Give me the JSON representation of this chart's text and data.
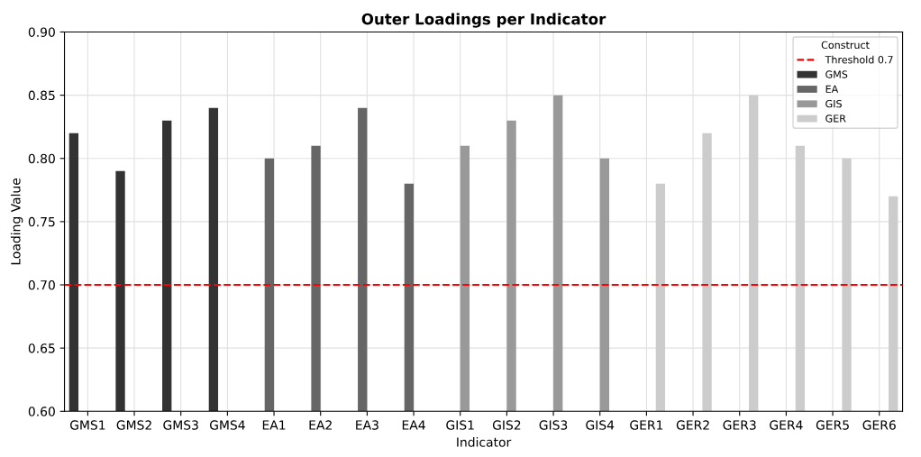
{
  "chart_data": {
    "type": "bar",
    "title": "Outer Loadings per Indicator",
    "xlabel": "Indicator",
    "ylabel": "Loading Value",
    "categories": [
      "GMS1",
      "GMS2",
      "GMS3",
      "GMS4",
      "EA1",
      "EA2",
      "EA3",
      "EA4",
      "GIS1",
      "GIS2",
      "GIS3",
      "GIS4",
      "GER1",
      "GER2",
      "GER3",
      "GER4",
      "GER5",
      "GER6"
    ],
    "series": [
      {
        "name": "GMS",
        "color": "#333333",
        "values": [
          0.82,
          0.79,
          0.83,
          0.84,
          null,
          null,
          null,
          null,
          null,
          null,
          null,
          null,
          null,
          null,
          null,
          null,
          null,
          null
        ]
      },
      {
        "name": "EA",
        "color": "#666666",
        "values": [
          null,
          null,
          null,
          null,
          0.8,
          0.81,
          0.84,
          0.78,
          null,
          null,
          null,
          null,
          null,
          null,
          null,
          null,
          null,
          null
        ]
      },
      {
        "name": "GIS",
        "color": "#999999",
        "values": [
          null,
          null,
          null,
          null,
          null,
          null,
          null,
          null,
          0.81,
          0.83,
          0.85,
          0.8,
          null,
          null,
          null,
          null,
          null,
          null
        ]
      },
      {
        "name": "GER",
        "color": "#cccccc",
        "values": [
          null,
          null,
          null,
          null,
          null,
          null,
          null,
          null,
          null,
          null,
          null,
          null,
          0.78,
          0.82,
          0.85,
          0.81,
          0.8,
          0.77
        ]
      }
    ],
    "ylim": [
      0.6,
      0.9
    ],
    "yticks": [
      {
        "value": 0.6,
        "label": "0.60"
      },
      {
        "value": 0.65,
        "label": "0.65"
      },
      {
        "value": 0.7,
        "label": "0.70"
      },
      {
        "value": 0.75,
        "label": "0.75"
      },
      {
        "value": 0.8,
        "label": "0.80"
      },
      {
        "value": 0.85,
        "label": "0.85"
      },
      {
        "value": 0.9,
        "label": "0.90"
      }
    ],
    "ref_lines": [
      {
        "axis": "y",
        "value": 0.7,
        "label": "Threshold 0.7",
        "color": "#ff0000",
        "line_style": "dashed"
      }
    ],
    "legend_title": "Construct",
    "legend": "top right",
    "grid": true
  }
}
